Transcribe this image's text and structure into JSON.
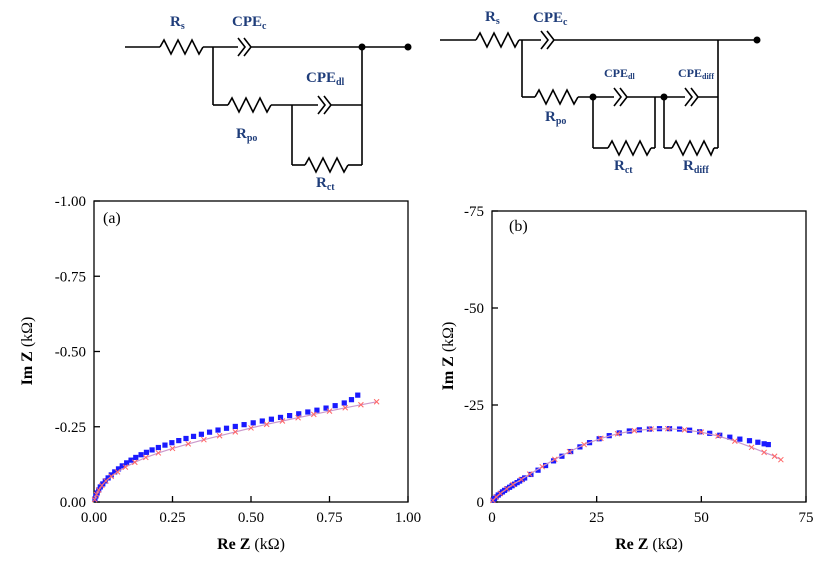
{
  "colors": {
    "model": "#1a1aff",
    "fit_marker": "#ff6666",
    "fit_line": "#cc99cc",
    "circuit_label": "#1f3d7a"
  },
  "circuits": {
    "left": {
      "rs": {
        "main": "R",
        "sub": "s"
      },
      "cpe_c": {
        "main": "CPE",
        "sub": "c"
      },
      "cpe_dl": {
        "main": "CPE",
        "sub": "dl"
      },
      "r_po": {
        "main": "R",
        "sub": "po"
      },
      "r_ct": {
        "main": "R",
        "sub": "ct"
      }
    },
    "right": {
      "rs": {
        "main": "R",
        "sub": "s"
      },
      "cpe_c": {
        "main": "CPE",
        "sub": "c"
      },
      "cpe_dl": {
        "main": "CPE",
        "sub": "dl"
      },
      "cpe_diff": {
        "main": "CPE",
        "sub": "diff"
      },
      "r_po": {
        "main": "R",
        "sub": "po"
      },
      "r_ct": {
        "main": "R",
        "sub": "ct"
      },
      "r_diff": {
        "main": "R",
        "sub": "diff"
      }
    }
  },
  "chart_data": [
    {
      "type": "scatter",
      "panel_label": "(a)",
      "xlabel": {
        "bold": "Re Z",
        "unit": "(kΩ)"
      },
      "ylabel": {
        "bold": "Im Z",
        "unit": "(kΩ)"
      },
      "xlim": [
        0,
        1.0
      ],
      "ylim": [
        0,
        -1.0
      ],
      "y_axis_inverted": true,
      "xticks": [
        "0.00",
        "0.25",
        "0.50",
        "0.75",
        "1.00"
      ],
      "yticks": [
        "0.00",
        "-0.25",
        "-0.50",
        "-0.75",
        "-1.00"
      ],
      "xtick_values": [
        0,
        0.25,
        0.5,
        0.75,
        1.0
      ],
      "ytick_values": [
        0,
        -0.25,
        -0.5,
        -0.75,
        -1.0
      ],
      "series": [
        {
          "marker": "square",
          "x": [
            0.003,
            0.006,
            0.01,
            0.015,
            0.02,
            0.028,
            0.036,
            0.045,
            0.055,
            0.066,
            0.078,
            0.09,
            0.104,
            0.118,
            0.133,
            0.15,
            0.167,
            0.185,
            0.205,
            0.226,
            0.248,
            0.27,
            0.293,
            0.317,
            0.342,
            0.368,
            0.395,
            0.422,
            0.45,
            0.478,
            0.507,
            0.536,
            0.565,
            0.594,
            0.623,
            0.652,
            0.681,
            0.71,
            0.739,
            0.768,
            0.797,
            0.82,
            0.84
          ],
          "y": [
            -0.01,
            -0.02,
            -0.03,
            -0.04,
            -0.05,
            -0.06,
            -0.07,
            -0.08,
            -0.09,
            -0.1,
            -0.11,
            -0.12,
            -0.13,
            -0.139,
            -0.148,
            -0.157,
            -0.165,
            -0.173,
            -0.181,
            -0.189,
            -0.197,
            -0.204,
            -0.211,
            -0.218,
            -0.225,
            -0.232,
            -0.239,
            -0.245,
            -0.251,
            -0.257,
            -0.263,
            -0.269,
            -0.275,
            -0.281,
            -0.287,
            -0.293,
            -0.299,
            -0.305,
            -0.312,
            -0.32,
            -0.329,
            -0.34,
            -0.355
          ]
        },
        {
          "marker": "x",
          "line": true,
          "x": [
            0.002,
            0.008,
            0.015,
            0.025,
            0.038,
            0.055,
            0.075,
            0.1,
            0.13,
            0.165,
            0.205,
            0.25,
            0.3,
            0.35,
            0.4,
            0.45,
            0.5,
            0.55,
            0.6,
            0.65,
            0.7,
            0.75,
            0.8,
            0.85,
            0.9
          ],
          "y": [
            -0.008,
            -0.025,
            -0.04,
            -0.055,
            -0.07,
            -0.085,
            -0.1,
            -0.116,
            -0.132,
            -0.148,
            -0.163,
            -0.178,
            -0.193,
            -0.207,
            -0.22,
            -0.233,
            -0.246,
            -0.258,
            -0.269,
            -0.28,
            -0.291,
            -0.302,
            -0.313,
            -0.323,
            -0.333
          ]
        }
      ]
    },
    {
      "type": "scatter",
      "panel_label": "(b)",
      "xlabel": {
        "bold": "Re Z",
        "unit": "(kΩ)"
      },
      "ylabel": {
        "bold": "Im Z",
        "unit": "(kΩ)"
      },
      "xlim": [
        0,
        75
      ],
      "ylim": [
        0,
        -75
      ],
      "y_axis_inverted": true,
      "xticks": [
        "0",
        "25",
        "50",
        "75"
      ],
      "yticks": [
        "0",
        "-25",
        "-50",
        "-75"
      ],
      "xtick_values": [
        0,
        25,
        50,
        75
      ],
      "ytick_values": [
        0,
        -25,
        -50,
        -75
      ],
      "series": [
        {
          "marker": "square",
          "x": [
            0.3,
            0.6,
            1.0,
            1.5,
            2.0,
            2.5,
            3.0,
            3.6,
            4.2,
            4.8,
            5.4,
            6.0,
            6.6,
            7.2,
            7.8,
            9.3,
            11.0,
            12.8,
            14.7,
            16.7,
            18.8,
            21.0,
            23.3,
            25.6,
            28.0,
            30.4,
            32.8,
            35.2,
            37.6,
            40.0,
            42.4,
            44.8,
            47.2,
            49.6,
            52.0,
            54.4,
            56.8,
            59.2,
            61.5,
            63.5,
            65.0,
            66.0
          ],
          "y": [
            -0.5,
            -0.9,
            -1.3,
            -1.8,
            -2.2,
            -2.6,
            -3.0,
            -3.4,
            -3.8,
            -4.2,
            -4.6,
            -5.0,
            -5.4,
            -5.8,
            -6.2,
            -7.1,
            -8.2,
            -9.4,
            -10.6,
            -11.8,
            -13.0,
            -14.2,
            -15.3,
            -16.3,
            -17.1,
            -17.8,
            -18.3,
            -18.6,
            -18.8,
            -18.9,
            -18.9,
            -18.8,
            -18.5,
            -18.1,
            -17.7,
            -17.2,
            -16.7,
            -16.2,
            -15.8,
            -15.4,
            -15.0,
            -14.8
          ]
        },
        {
          "marker": "x",
          "line": true,
          "x": [
            0.2,
            1.0,
            2.0,
            3.5,
            5.0,
            7.0,
            9.0,
            12.0,
            15.0,
            18.5,
            22.0,
            26.0,
            30.0,
            34.0,
            38.0,
            42.0,
            46.0,
            50.0,
            54.0,
            58.0,
            62.0,
            65.0,
            67.5,
            69.0
          ],
          "y": [
            -0.4,
            -1.3,
            -2.2,
            -3.4,
            -4.5,
            -5.8,
            -7.2,
            -9.1,
            -11.0,
            -13.0,
            -14.8,
            -16.4,
            -17.6,
            -18.4,
            -18.8,
            -18.9,
            -18.6,
            -18.0,
            -17.0,
            -15.7,
            -14.1,
            -12.8,
            -11.8,
            -10.9
          ]
        }
      ]
    }
  ]
}
